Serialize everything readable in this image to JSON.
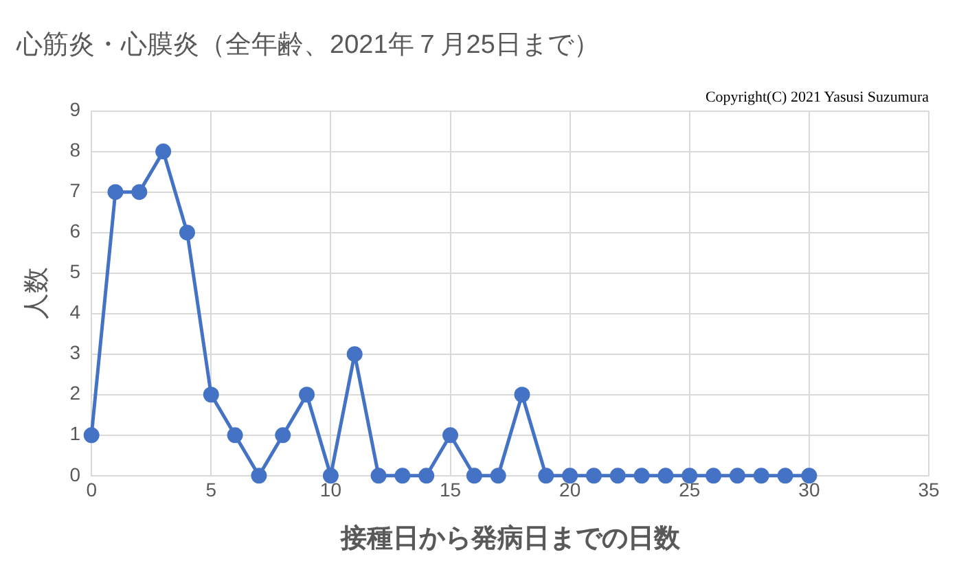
{
  "chart_data": {
    "type": "line",
    "title": "心筋炎・心膜炎（全年齢、2021年７月25日まで）",
    "xlabel": "接種日から発病日までの日数",
    "ylabel": "人数",
    "annotations": [
      "Copyright(C) 2021 Yasusi Suzumura"
    ],
    "x": [
      0,
      1,
      2,
      3,
      4,
      5,
      6,
      7,
      8,
      9,
      10,
      11,
      12,
      13,
      14,
      15,
      16,
      17,
      18,
      19,
      20,
      21,
      22,
      23,
      24,
      25,
      26,
      27,
      28,
      29,
      30
    ],
    "series": [
      {
        "color": "#4472c4",
        "values": [
          1,
          7,
          7,
          8,
          6,
          2,
          1,
          0,
          1,
          2,
          0,
          3,
          0,
          0,
          0,
          1,
          0,
          0,
          2,
          0,
          0,
          0,
          0,
          0,
          0,
          0,
          0,
          0,
          0,
          0,
          0
        ]
      }
    ],
    "xlim": [
      0,
      35
    ],
    "xticks": [
      0,
      5,
      10,
      15,
      20,
      25,
      30,
      35
    ],
    "ylim": [
      0,
      9
    ],
    "yticks": [
      0,
      1,
      2,
      3,
      4,
      5,
      6,
      7,
      8,
      9
    ],
    "grid": true,
    "legend": false,
    "marker": "circle",
    "line_style": "solid"
  }
}
